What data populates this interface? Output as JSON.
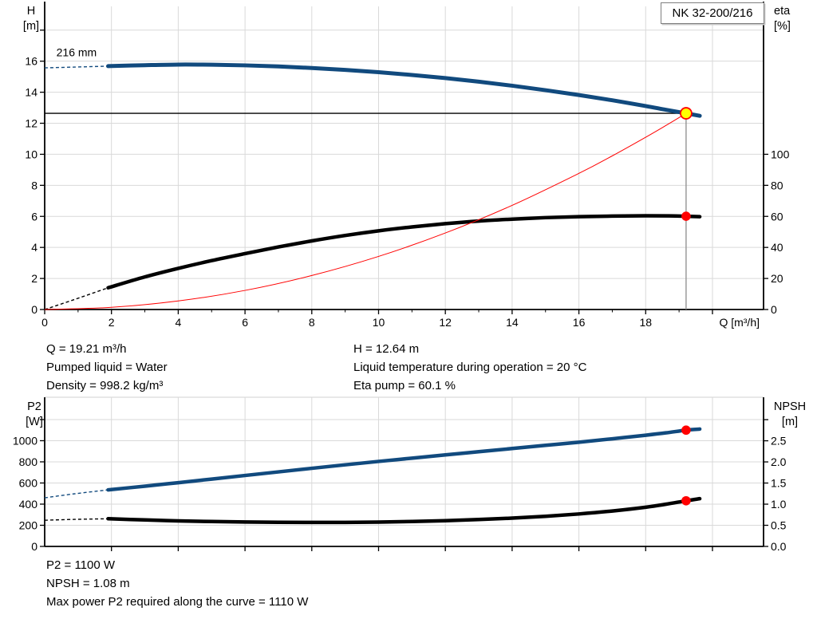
{
  "pump": {
    "model": "NK 32-200/216"
  },
  "axis_titles": {
    "top_left": "H\n[m]",
    "top_right": "eta\n[%]",
    "bottom_left": "P2\n[W]",
    "bottom_right": "NPSH\n[m]"
  },
  "operating_point_info": {
    "left": [
      "Q = 19.21 m³/h",
      "Pumped liquid = Water",
      "Density = 998.2 kg/m³"
    ],
    "right": [
      "H = 12.64 m",
      "Liquid temperature during operation = 20 °C",
      "Eta pump = 60.1 %"
    ]
  },
  "power_info": {
    "lines": [
      "P2 = 1100 W",
      "NPSH = 1.08 m",
      "Max power P2 required along the curve = 1110 W"
    ]
  },
  "colors": {
    "curve_blue": "#114a7e",
    "curve_black": "#000000",
    "system_red": "#ff0000",
    "duty_yellow": "#ffff00",
    "marker_red": "#ff0000",
    "grid": "#d9d9d9",
    "axis": "#000000",
    "duty_vline": "#8c8c8c"
  },
  "chart_data": [
    {
      "type": "line",
      "name": "hq-eta-chart",
      "x_axis": {
        "label": "Q [m³/h]",
        "min": 0,
        "max": 21.53,
        "ticks": [
          {
            "v": 0,
            "label": "0"
          },
          {
            "v": 2,
            "label": "2"
          },
          {
            "v": 4,
            "label": "4"
          },
          {
            "v": 6,
            "label": "6"
          },
          {
            "v": 8,
            "label": "8"
          },
          {
            "v": 10,
            "label": "10"
          },
          {
            "v": 12,
            "label": "12"
          },
          {
            "v": 14,
            "label": "14"
          },
          {
            "v": 16,
            "label": "16"
          },
          {
            "v": 18,
            "label": "18"
          },
          {
            "v": 20,
            "label": ""
          }
        ],
        "minor": [
          1,
          3,
          5,
          7,
          9,
          11,
          13,
          15,
          17,
          19
        ]
      },
      "left_axis": {
        "title": "H [m]",
        "min": 0,
        "max": 19.53,
        "ticks": [
          {
            "v": 0,
            "label": "0"
          },
          {
            "v": 2,
            "label": "2"
          },
          {
            "v": 4,
            "label": "4"
          },
          {
            "v": 6,
            "label": "6"
          },
          {
            "v": 8,
            "label": "8"
          },
          {
            "v": 10,
            "label": "10"
          },
          {
            "v": 12,
            "label": "12"
          },
          {
            "v": 14,
            "label": "14"
          },
          {
            "v": 16,
            "label": "16"
          },
          {
            "v": 18,
            "label": ""
          }
        ]
      },
      "right_axis": {
        "title": "eta [%]",
        "min": 0,
        "max": 195.3,
        "ticks": [
          {
            "v": 0,
            "label": "0"
          },
          {
            "v": 20,
            "label": "20"
          },
          {
            "v": 40,
            "label": "40"
          },
          {
            "v": 60,
            "label": "60"
          },
          {
            "v": 80,
            "label": "80"
          },
          {
            "v": 100,
            "label": "100"
          }
        ]
      },
      "series": [
        {
          "id": "eta-curve",
          "color": "#000000",
          "width": 4.5,
          "axis": "right",
          "dash_until": 1.9,
          "points": [
            [
              0,
              0
            ],
            [
              0.9,
              6.5
            ],
            [
              1.9,
              14
            ],
            [
              3,
              21
            ],
            [
              4,
              26.5
            ],
            [
              5,
              31.5
            ],
            [
              6,
              36
            ],
            [
              7,
              40.3
            ],
            [
              8,
              44.2
            ],
            [
              9,
              47.7
            ],
            [
              10,
              50.7
            ],
            [
              11,
              53.2
            ],
            [
              12,
              55.3
            ],
            [
              13,
              57
            ],
            [
              14,
              58.2
            ],
            [
              15,
              59.2
            ],
            [
              16,
              59.8
            ],
            [
              17,
              60.2
            ],
            [
              18,
              60.4
            ],
            [
              18.7,
              60.35
            ],
            [
              19.21,
              60.1
            ],
            [
              19.62,
              59.8
            ]
          ]
        },
        {
          "id": "system-curve",
          "color": "#ff0000",
          "width": 1,
          "axis": "left",
          "points": [
            [
              0,
              0
            ],
            [
              2,
              0.14
            ],
            [
              4,
              0.55
            ],
            [
              6,
              1.23
            ],
            [
              8,
              2.19
            ],
            [
              10,
              3.42
            ],
            [
              12,
              4.93
            ],
            [
              14,
              6.71
            ],
            [
              16,
              8.77
            ],
            [
              17,
              9.9
            ],
            [
              18,
              11.1
            ],
            [
              18.6,
              11.85
            ],
            [
              19.21,
              12.64
            ]
          ]
        },
        {
          "id": "head-curve-216mm",
          "color": "#114a7e",
          "width": 5,
          "axis": "left",
          "dash_until": 1.9,
          "points": [
            [
              0,
              15.57
            ],
            [
              0.9,
              15.62
            ],
            [
              1.9,
              15.68
            ],
            [
              3,
              15.74
            ],
            [
              4,
              15.78
            ],
            [
              5,
              15.77
            ],
            [
              6,
              15.73
            ],
            [
              7,
              15.66
            ],
            [
              8,
              15.56
            ],
            [
              9,
              15.44
            ],
            [
              10,
              15.29
            ],
            [
              11,
              15.11
            ],
            [
              12,
              14.91
            ],
            [
              13,
              14.68
            ],
            [
              14,
              14.42
            ],
            [
              15,
              14.13
            ],
            [
              16,
              13.82
            ],
            [
              17,
              13.48
            ],
            [
              18,
              13.11
            ],
            [
              18.6,
              12.87
            ],
            [
              19.21,
              12.64
            ],
            [
              19.62,
              12.48
            ]
          ]
        }
      ],
      "ref_lines": [
        {
          "dir": "h",
          "axis": "left",
          "v": 12.64,
          "q1": 0,
          "q2": 19.21,
          "color": "#000000",
          "w": 1.3,
          "name": "duty-head-line"
        },
        {
          "dir": "v",
          "axis": "left",
          "q": 19.21,
          "v1": 0,
          "v2": 12.64,
          "color": "#8c8c8c",
          "w": 1.3,
          "name": "duty-flow-line"
        }
      ],
      "markers": [
        {
          "name": "duty-point-marker",
          "q": 19.21,
          "v": 12.64,
          "axis": "left",
          "fill": "#ffff00",
          "stroke": "#ff0000",
          "r": 7,
          "sw": 1.8
        },
        {
          "name": "eta-point-marker",
          "q": 19.21,
          "v": 60.1,
          "axis": "right",
          "fill": "#ff0000",
          "stroke": "none",
          "r": 5.8,
          "sw": 0
        }
      ],
      "annotations": [
        {
          "text": "216 mm",
          "q": 0.35,
          "v": 16.32,
          "size": 14
        }
      ]
    },
    {
      "type": "line",
      "name": "p2-npsh-chart",
      "x_axis": {
        "label": "",
        "min": 0,
        "max": 21.53,
        "ticks": [
          {
            "v": 2,
            "label": ""
          },
          {
            "v": 4,
            "label": ""
          },
          {
            "v": 6,
            "label": ""
          },
          {
            "v": 8,
            "label": ""
          },
          {
            "v": 10,
            "label": ""
          },
          {
            "v": 12,
            "label": ""
          },
          {
            "v": 14,
            "label": ""
          },
          {
            "v": 16,
            "label": ""
          },
          {
            "v": 18,
            "label": ""
          },
          {
            "v": 20,
            "label": ""
          }
        ],
        "minor": []
      },
      "left_axis": {
        "title": "P2 [W]",
        "min": 0,
        "max": 1411,
        "ticks": [
          {
            "v": 0,
            "label": "0"
          },
          {
            "v": 200,
            "label": "200"
          },
          {
            "v": 400,
            "label": "400"
          },
          {
            "v": 600,
            "label": "600"
          },
          {
            "v": 800,
            "label": "800"
          },
          {
            "v": 1000,
            "label": "1000"
          },
          {
            "v": 1200,
            "label": ""
          }
        ]
      },
      "right_axis": {
        "title": "NPSH [m]",
        "min": 0,
        "max": 3.53,
        "ticks": [
          {
            "v": 0,
            "label": "0.0"
          },
          {
            "v": 0.5,
            "label": "0.5"
          },
          {
            "v": 1,
            "label": "1.0"
          },
          {
            "v": 1.5,
            "label": "1.5"
          },
          {
            "v": 2,
            "label": "2.0"
          },
          {
            "v": 2.5,
            "label": "2.5"
          },
          {
            "v": 3,
            "label": ""
          }
        ]
      },
      "border_top": true,
      "series": [
        {
          "id": "npsh-curve",
          "color": "#000000",
          "width": 4.5,
          "axis": "right",
          "dash_until": 1.9,
          "points": [
            [
              0,
              0.62
            ],
            [
              0.9,
              0.64
            ],
            [
              1.9,
              0.655
            ],
            [
              3,
              0.627
            ],
            [
              4,
              0.605
            ],
            [
              5,
              0.589
            ],
            [
              6,
              0.578
            ],
            [
              7,
              0.571
            ],
            [
              8,
              0.568
            ],
            [
              9,
              0.569
            ],
            [
              10,
              0.576
            ],
            [
              11,
              0.589
            ],
            [
              12,
              0.609
            ],
            [
              13,
              0.636
            ],
            [
              14,
              0.669
            ],
            [
              15,
              0.712
            ],
            [
              16,
              0.768
            ],
            [
              17,
              0.838
            ],
            [
              18,
              0.928
            ],
            [
              18.6,
              0.998
            ],
            [
              19.21,
              1.08
            ],
            [
              19.62,
              1.13
            ]
          ]
        },
        {
          "id": "p2-curve",
          "color": "#114a7e",
          "width": 4.5,
          "axis": "left",
          "dash_until": 1.9,
          "points": [
            [
              0,
              460
            ],
            [
              0.9,
              498
            ],
            [
              1.9,
              535
            ],
            [
              3,
              570
            ],
            [
              4,
              603
            ],
            [
              5,
              637
            ],
            [
              6,
              671
            ],
            [
              7,
              705
            ],
            [
              8,
              739
            ],
            [
              9,
              772
            ],
            [
              10,
              804
            ],
            [
              11,
              835
            ],
            [
              12,
              866
            ],
            [
              13,
              896
            ],
            [
              14,
              926
            ],
            [
              15,
              956
            ],
            [
              16,
              986
            ],
            [
              17,
              1018
            ],
            [
              18,
              1052
            ],
            [
              18.6,
              1074
            ],
            [
              19.21,
              1100
            ],
            [
              19.62,
              1110
            ]
          ]
        }
      ],
      "ref_lines": [],
      "markers": [
        {
          "name": "p2-point-marker",
          "q": 19.21,
          "v": 1100,
          "axis": "left",
          "fill": "#ff0000",
          "stroke": "none",
          "r": 5.8,
          "sw": 0
        },
        {
          "name": "npsh-point-marker",
          "q": 19.21,
          "v": 1.08,
          "axis": "right",
          "fill": "#ff0000",
          "stroke": "none",
          "r": 5.8,
          "sw": 0
        }
      ],
      "annotations": []
    }
  ]
}
